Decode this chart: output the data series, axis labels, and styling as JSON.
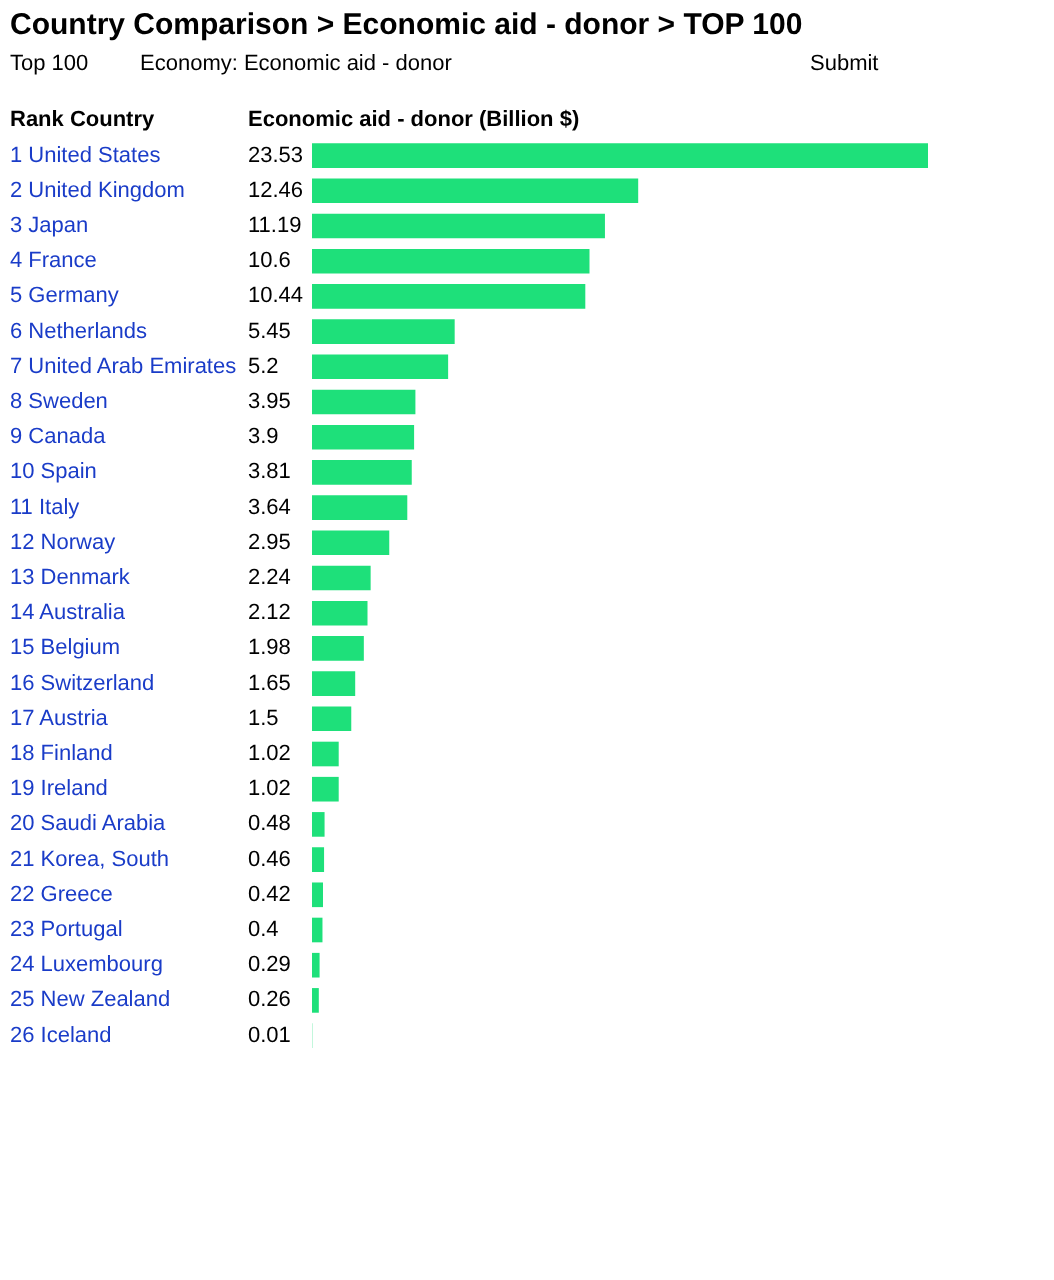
{
  "chart_data": {
    "type": "bar",
    "orientation": "horizontal",
    "title": "Country Comparison > Economic aid - donor > TOP 100",
    "annotations": [
      "Top 100",
      "Economy: Economic aid - donor",
      "Submit"
    ],
    "ylabel": "Rank Country",
    "xlabel": "Economic aid - donor (Billion $)",
    "categories": [
      "1 United States",
      "2 United Kingdom",
      "3 Japan",
      "4 France",
      "5 Germany",
      "6 Netherlands",
      "7 United Arab Emirates",
      "8 Sweden",
      "9 Canada",
      "10 Spain",
      "11 Italy",
      "12 Norway",
      "13 Denmark",
      "14 Australia",
      "15 Belgium",
      "16 Switzerland",
      "17 Austria",
      "18 Finland",
      "19 Ireland",
      "20 Saudi Arabia",
      "21 Korea, South",
      "22 Greece",
      "23 Portugal",
      "24 Luxembourg",
      "25 New Zealand",
      "26 Iceland"
    ],
    "values": [
      23.53,
      12.46,
      11.19,
      10.6,
      10.44,
      5.45,
      5.2,
      3.95,
      3.9,
      3.81,
      3.64,
      2.95,
      2.24,
      2.12,
      1.98,
      1.65,
      1.5,
      1.02,
      1.02,
      0.48,
      0.46,
      0.42,
      0.4,
      0.29,
      0.26,
      0.01
    ],
    "color": "#1ee07a",
    "data_labels": true
  }
}
